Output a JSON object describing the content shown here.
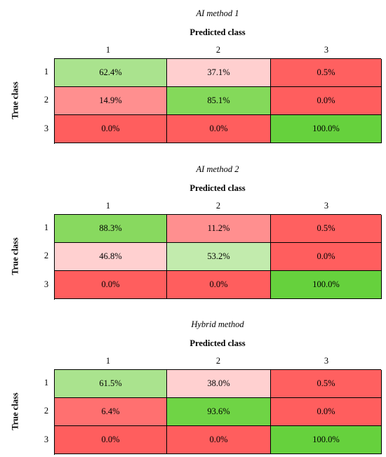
{
  "chart_data": [
    {
      "type": "heatmap",
      "title": "AI method 1",
      "xlabel": "Predicted class",
      "ylabel": "True class",
      "x_categories": [
        "1",
        "2",
        "3"
      ],
      "y_categories": [
        "1",
        "2",
        "3"
      ],
      "cells": [
        [
          "62.4%",
          "37.1%",
          "0.5%"
        ],
        [
          "14.9%",
          "85.1%",
          "0.0%"
        ],
        [
          "0.0%",
          "0.0%",
          "100.0%"
        ]
      ],
      "colors": [
        [
          "#aae38e",
          "#ffcfcf",
          "#ff6060"
        ],
        [
          "#ff8f8f",
          "#84d95a",
          "#ff5e5e"
        ],
        [
          "#ff5e5e",
          "#ff5e5e",
          "#66d13d"
        ]
      ]
    },
    {
      "type": "heatmap",
      "title": "AI method 2",
      "xlabel": "Predicted class",
      "ylabel": "True class",
      "x_categories": [
        "1",
        "2",
        "3"
      ],
      "y_categories": [
        "1",
        "2",
        "3"
      ],
      "cells": [
        [
          "88.3%",
          "11.2%",
          "0.5%"
        ],
        [
          "46.8%",
          "53.2%",
          "0.0%"
        ],
        [
          "0.0%",
          "0.0%",
          "100.0%"
        ]
      ],
      "colors": [
        [
          "#88d95f",
          "#ff8f8f",
          "#ff6060"
        ],
        [
          "#ffd0d0",
          "#c2ebad",
          "#ff5e5e"
        ],
        [
          "#ff5e5e",
          "#ff5e5e",
          "#66d13d"
        ]
      ]
    },
    {
      "type": "heatmap",
      "title": "Hybrid method",
      "xlabel": "Predicted class",
      "ylabel": "True class",
      "x_categories": [
        "1",
        "2",
        "3"
      ],
      "y_categories": [
        "1",
        "2",
        "3"
      ],
      "cells": [
        [
          "61.5%",
          "38.0%",
          "0.5%"
        ],
        [
          "6.4%",
          "93.6%",
          "0.0%"
        ],
        [
          "0.0%",
          "0.0%",
          "100.0%"
        ]
      ],
      "colors": [
        [
          "#aae38e",
          "#ffd0d0",
          "#ff6060"
        ],
        [
          "#ff7070",
          "#6fd445",
          "#ff5e5e"
        ],
        [
          "#ff5e5e",
          "#ff5e5e",
          "#66d13d"
        ]
      ]
    }
  ]
}
